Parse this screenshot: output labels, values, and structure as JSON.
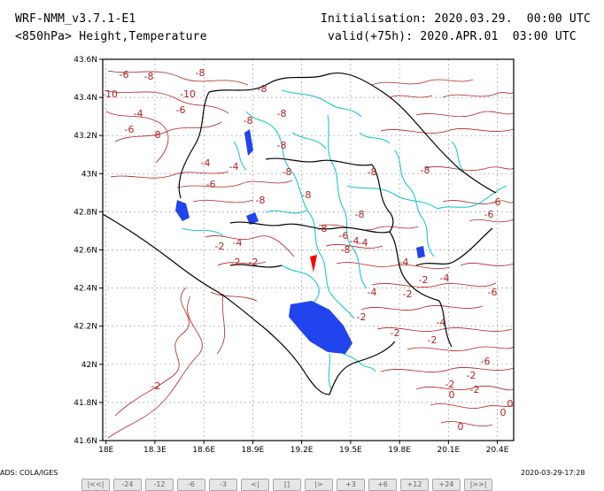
{
  "header": {
    "model": "WRF-NMM_v3.7.1-E1",
    "field": "<850hPa> Height,Temperature",
    "init": "Initialisation: 2020.03.29.  00:00 UTC",
    "valid": "valid(+75h): 2020.APR.01  03:00 UTC"
  },
  "map": {
    "lat_ticks": [
      "43.6N",
      "43.4N",
      "43.2N",
      "43N",
      "42.8N",
      "42.6N",
      "42.4N",
      "42.2N",
      "42N",
      "41.8N",
      "41.6N"
    ],
    "lon_ticks": [
      "18E",
      "18.3E",
      "18.6E",
      "18.9E",
      "19.2E",
      "19.5E",
      "19.8E",
      "20.1E",
      "20.4E"
    ],
    "lat_range": [
      41.6,
      43.6
    ],
    "lon_range": [
      17.98,
      20.5
    ],
    "contour_labels": [
      "-6",
      "-8",
      "-10",
      "-8",
      "-6",
      "-4",
      "-6",
      "-8",
      "-10",
      "-8",
      "-8",
      "-8",
      "-8",
      "-8",
      "-8",
      "-8",
      "-6",
      "-4",
      "-8",
      "-8",
      "-8",
      "-6",
      "-6",
      "-8",
      "-8",
      "-4",
      "-6",
      "-4",
      "-4",
      "-4",
      "-2",
      "-2",
      "-2",
      "-2",
      "-2",
      "-2",
      "-4",
      "-4",
      "-6",
      "-2",
      "-2",
      "-6",
      "-4",
      "-4",
      "-2",
      "-2",
      "-2",
      "0",
      "0",
      "0",
      "-2",
      "0"
    ],
    "colors": {
      "contour": "#b22222",
      "river": "#1ec8c8",
      "lake": "#2244ee",
      "border": "#000000",
      "grid": "#a0a0a0",
      "marker": "#ff0000"
    }
  },
  "footer": {
    "credit": "ADS: COLA/IGES",
    "timestamp": "2020-03-29-17:28",
    "nav_buttons": [
      "|<<|",
      "-24",
      "-12",
      "-6",
      "-3",
      "<|",
      "[]",
      "|>",
      "+3",
      "+6",
      "+12",
      "+24",
      "|>>|"
    ]
  }
}
